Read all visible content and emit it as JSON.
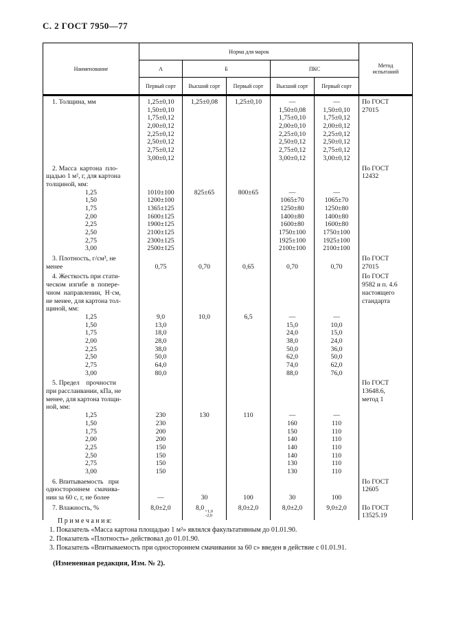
{
  "page": {
    "header": "С. 2 ГОСТ 7950—77"
  },
  "table": {
    "col_headers": {
      "name": "Наименование",
      "norm_group": "Норма для марок",
      "brands": [
        "А",
        "Б",
        "ПКС"
      ],
      "grades": [
        "Первый сорт",
        "Высший сорт",
        "Первый сорт",
        "Высший сорт",
        "Первый сорт"
      ],
      "method": "Метод испытаний"
    },
    "rows": [
      {
        "name_para": [
          "1. Толщина, мм"
        ],
        "name_items": [],
        "values": [
          [
            "1,25±0,10",
            "1,50±0,10",
            "1,75±0,12",
            "2,00±0,12",
            "2,25±0,12",
            "2,50±0,12",
            "2,75±0,12",
            "3,00±0,12"
          ],
          [
            "1,25±0,08"
          ],
          [
            "1,25±0,10"
          ],
          [
            "—",
            "1,50±0,08",
            "1,75±0,10",
            "2,00±0,10",
            "2,25±0,10",
            "2,50±0,12",
            "2,75±0,12",
            "3,00±0,12"
          ],
          [
            "—",
            "1,50±0,10",
            "1,75±0,12",
            "2,00±0,12",
            "2,25±0,12",
            "2,50±0,12",
            "2,75±0,12",
            "3,00±0,12"
          ]
        ],
        "method": [
          "По ГОСТ",
          "27015"
        ]
      },
      {
        "name_para": [
          "2. Масса  картона  пло-",
          "щадью 1 м², г, для картона",
          "толщиной, мм:"
        ],
        "name_items": [
          "1,25",
          "1,50",
          "1,75",
          "2,00",
          "2,25",
          "2,50",
          "2,75",
          "3,00"
        ],
        "values": [
          [
            "",
            "",
            "",
            "1010±100",
            "1200±100",
            "1365±125",
            "1600±125",
            "1900±125",
            "2100±125",
            "2300±125",
            "2500±125"
          ],
          [
            "",
            "",
            "",
            "825±65"
          ],
          [
            "",
            "",
            "",
            "800±65"
          ],
          [
            "",
            "",
            "",
            "—",
            "1065±70",
            "1250±80",
            "1400±80",
            "1600±80",
            "1750±100",
            "1925±100",
            "2100±100"
          ],
          [
            "",
            "",
            "",
            "—",
            "1065±70",
            "1250±80",
            "1400±80",
            "1600±80",
            "1750±100",
            "1925±100",
            "2100±100"
          ]
        ],
        "method": [
          "По ГОСТ",
          "12432"
        ]
      },
      {
        "name_para": [
          "3. Плотность, г/см³, не",
          "менее"
        ],
        "name_items": [],
        "values": [
          [
            "",
            "0,75"
          ],
          [
            "",
            "0,70"
          ],
          [
            "",
            "0,65"
          ],
          [
            "",
            "0,70"
          ],
          [
            "",
            "0,70"
          ]
        ],
        "method": [
          "По ГОСТ",
          "27015"
        ]
      },
      {
        "name_para": [
          "4. Жесткость при стати-",
          "ческом  изгибе  в  попере-",
          "чном  направлении,  Н·см,",
          "не менее, для картона тол-",
          "щиной, мм:"
        ],
        "name_items": [
          "1,25",
          "1,50",
          "1,75",
          "2,00",
          "2,25",
          "2,50",
          "2,75",
          "3,00"
        ],
        "values": [
          [
            "",
            "",
            "",
            "",
            "",
            "9,0",
            "13,0",
            "18,0",
            "28,0",
            "38,0",
            "50,0",
            "64,0",
            "80,0"
          ],
          [
            "",
            "",
            "",
            "",
            "",
            "10,0"
          ],
          [
            "",
            "",
            "",
            "",
            "",
            "6,5"
          ],
          [
            "",
            "",
            "",
            "",
            "",
            "—",
            "15,0",
            "24,0",
            "38,0",
            "50,0",
            "62,0",
            "74,0",
            "88,0"
          ],
          [
            "",
            "",
            "",
            "",
            "",
            "—",
            "10,0",
            "15,0",
            "24,0",
            "36,0",
            "50,0",
            "62,0",
            "76,0"
          ]
        ],
        "method": [
          "По ГОСТ",
          "9582 и п. 4.6",
          "настоящего",
          "стандарта"
        ]
      },
      {
        "name_para": [
          "5. Предел    прочности",
          "при расслаивании, кПа, не",
          "менее, для картона толщи-",
          "ной, мм:"
        ],
        "name_items": [
          "1,25",
          "1,50",
          "1,75",
          "2,00",
          "2,25",
          "2,50",
          "2,75",
          "3,00"
        ],
        "values": [
          [
            "",
            "",
            "",
            "",
            "230",
            "230",
            "200",
            "200",
            "150",
            "150",
            "150",
            "150"
          ],
          [
            "",
            "",
            "",
            "",
            "130"
          ],
          [
            "",
            "",
            "",
            "",
            "110"
          ],
          [
            "",
            "",
            "",
            "",
            "—",
            "160",
            "150",
            "140",
            "140",
            "140",
            "130",
            "130"
          ],
          [
            "",
            "",
            "",
            "",
            "—",
            "110",
            "110",
            "110",
            "110",
            "110",
            "110",
            "110"
          ]
        ],
        "method": [
          "По ГОСТ",
          "13648.6,",
          "метод 1"
        ]
      },
      {
        "name_para": [
          "6. Впитываемость   при",
          "одностороннем   смачива-",
          "нии за 60 с, г, не более"
        ],
        "name_items": [],
        "values": [
          [
            "",
            "",
            "—"
          ],
          [
            "",
            "",
            "30"
          ],
          [
            "",
            "",
            "100"
          ],
          [
            "",
            "",
            "30"
          ],
          [
            "",
            "",
            "100"
          ]
        ],
        "method": [
          "По ГОСТ",
          "12605"
        ]
      },
      {
        "name_para": [
          "7. Влажность, %"
        ],
        "name_items": [],
        "values": [
          [
            "8,0±2,0"
          ],
          [
            {
              "base": "8,0",
              "sup": "+1,0",
              "sub": "-2,0"
            }
          ],
          [
            "8,0±2,0"
          ],
          [
            "8,0±2,0"
          ],
          [
            "9,0±2,0"
          ]
        ],
        "method": [
          "По ГОСТ",
          "13525.19"
        ]
      }
    ]
  },
  "notes": {
    "title": "П р и м е ч а н и я:",
    "items": [
      "1. Показатель «Масса картона площадью 1 м²» являлся факультативным до 01.01.90.",
      "2. Показатель «Плотность» действовал до 01.01.90.",
      "3. Показатель «Впитываемость при одностороннем смачивании за 60 с» введен в действие с 01.01.91."
    ],
    "amendment": "(Измененная редакция, Изм. № 2)."
  }
}
